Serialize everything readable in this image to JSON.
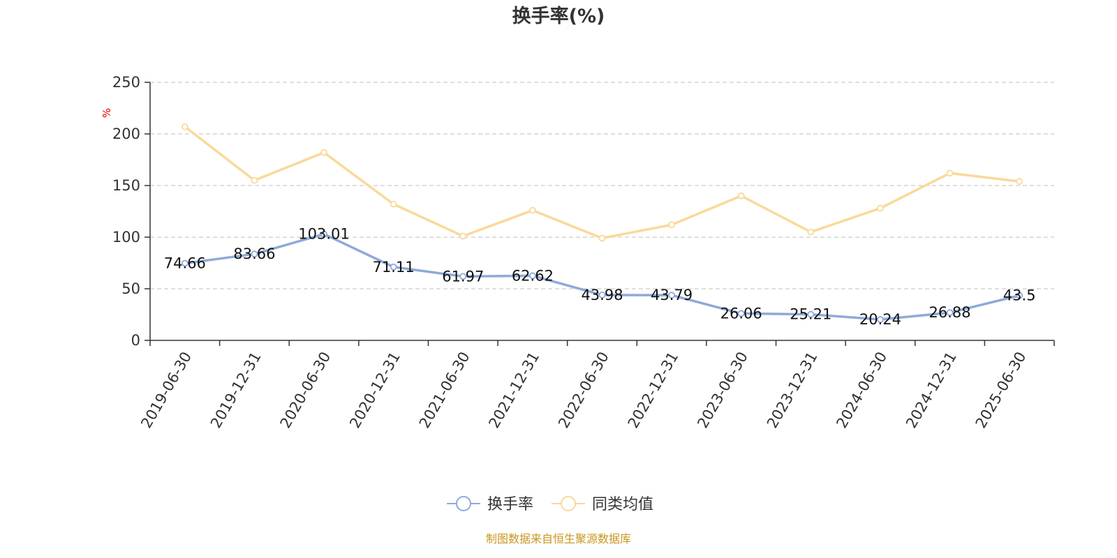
{
  "chart_data": {
    "type": "line",
    "title": "换手率(%)",
    "ylabel": "%",
    "xlabel": "",
    "ylim": [
      0,
      250
    ],
    "yticks": [
      0,
      50,
      100,
      150,
      200,
      250
    ],
    "grid": true,
    "legend_position": "bottom",
    "categories": [
      "2019-06-30",
      "2019-12-31",
      "2020-06-30",
      "2020-12-31",
      "2021-06-30",
      "2021-12-31",
      "2022-06-30",
      "2022-12-31",
      "2023-06-30",
      "2023-12-31",
      "2024-06-30",
      "2024-12-31",
      "2025-06-30"
    ],
    "series": [
      {
        "name": "换手率",
        "color": "#8eaad8",
        "values": [
          74.66,
          83.66,
          103.01,
          71.11,
          61.97,
          62.62,
          43.98,
          43.79,
          26.06,
          25.21,
          20.24,
          26.88,
          43.5
        ],
        "labels": [
          "74.66",
          "83.66",
          "103.01",
          "71.11",
          "61.97",
          "62.62",
          "43.98",
          "43.79",
          "26.06",
          "25.21",
          "20.24",
          "26.88",
          "43.5"
        ]
      },
      {
        "name": "同类均值",
        "color": "#f9d99a",
        "values": [
          207,
          155,
          182,
          132,
          101,
          126,
          99,
          112,
          140,
          105,
          128,
          162,
          154
        ]
      }
    ],
    "source": "制图数据来自恒生聚源数据库"
  }
}
